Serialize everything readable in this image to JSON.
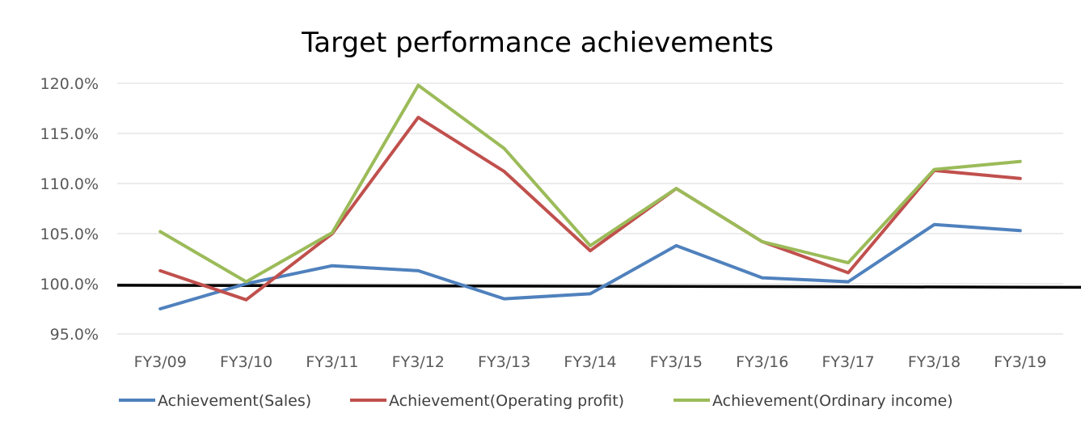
{
  "chart_data": {
    "type": "line",
    "title": "Target performance achievements",
    "xlabel": "",
    "ylabel": "",
    "categories": [
      "FY3/09",
      "FY3/10",
      "FY3/11",
      "FY3/12",
      "FY3/13",
      "FY3/14",
      "FY3/15",
      "FY3/16",
      "FY3/17",
      "FY3/18",
      "FY3/19"
    ],
    "ylim": [
      95,
      120
    ],
    "yticks": [
      95,
      100,
      105,
      110,
      115,
      120
    ],
    "ytick_labels": [
      "95.0%",
      "100.0%",
      "105.0%",
      "110.0%",
      "115.0%",
      "120.0%"
    ],
    "grid": "horizontal",
    "legend_position": "bottom",
    "series": [
      {
        "name": "Achievement(Sales)",
        "color": "#4f81bd",
        "values": [
          97.5,
          100.0,
          101.8,
          101.3,
          98.5,
          99.0,
          103.8,
          100.6,
          100.2,
          105.9,
          105.3
        ]
      },
      {
        "name": "Achievement(Operating profit)",
        "color": "#c0504d",
        "values": [
          101.3,
          98.4,
          105.0,
          116.6,
          111.2,
          103.3,
          109.5,
          104.2,
          101.1,
          111.3,
          110.5
        ]
      },
      {
        "name": "Achievement(Ordinary income)",
        "color": "#9bbb59",
        "values": [
          105.2,
          100.2,
          105.1,
          119.8,
          113.5,
          103.8,
          109.5,
          104.2,
          102.1,
          111.4,
          112.2
        ]
      }
    ],
    "reference_line": {
      "color": "#000000",
      "from": 99.85,
      "to": 99.65
    }
  }
}
